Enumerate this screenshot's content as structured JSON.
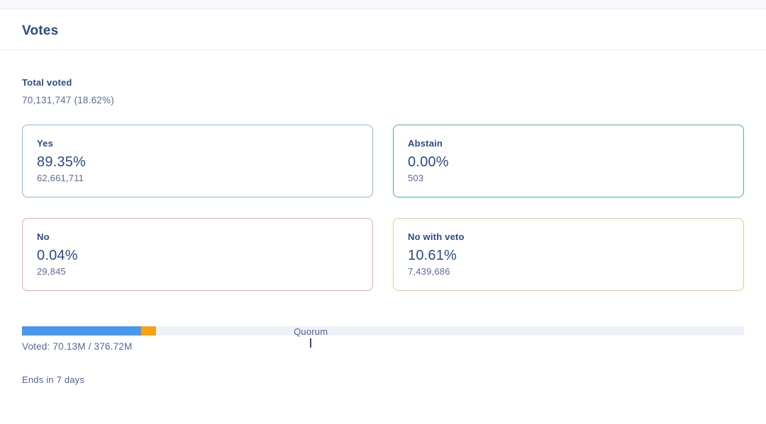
{
  "panel": {
    "title": "Votes"
  },
  "total_voted": {
    "label": "Total voted",
    "value": "70,131,747 (18.62%)"
  },
  "options": [
    {
      "id": "yes",
      "label": "Yes",
      "percent": "89.35%",
      "count": "62,661,711",
      "border_color": "#8cb4e4"
    },
    {
      "id": "abstain",
      "label": "Abstain",
      "percent": "0.00%",
      "count": "503",
      "border_color": "#55ab9f"
    },
    {
      "id": "no",
      "label": "No",
      "percent": "0.04%",
      "count": "29,845",
      "border_color": "#f0a3a8"
    },
    {
      "id": "no_with_veto",
      "label": "No with veto",
      "percent": "10.61%",
      "count": "7,439,686",
      "border_color": "#e9c983"
    }
  ],
  "quorum": {
    "label": "Quorum",
    "position_percent": 40
  },
  "turnout_bar": {
    "track_color": "#eef1f9",
    "segments": [
      {
        "name": "voted-non-veto",
        "color": "#4699ee",
        "width_percent": 16.5
      },
      {
        "name": "voted-veto",
        "color": "#f9a00e",
        "width_percent": 2.1
      }
    ]
  },
  "voted_summary": "Voted: 70.13M / 376.72M",
  "ends_in": "Ends in 7 days",
  "colors": {
    "heading": "#2c4a87",
    "muted_text": "#55639a",
    "top_strip": "#f7f8fc",
    "divider": "#ebedf1"
  }
}
